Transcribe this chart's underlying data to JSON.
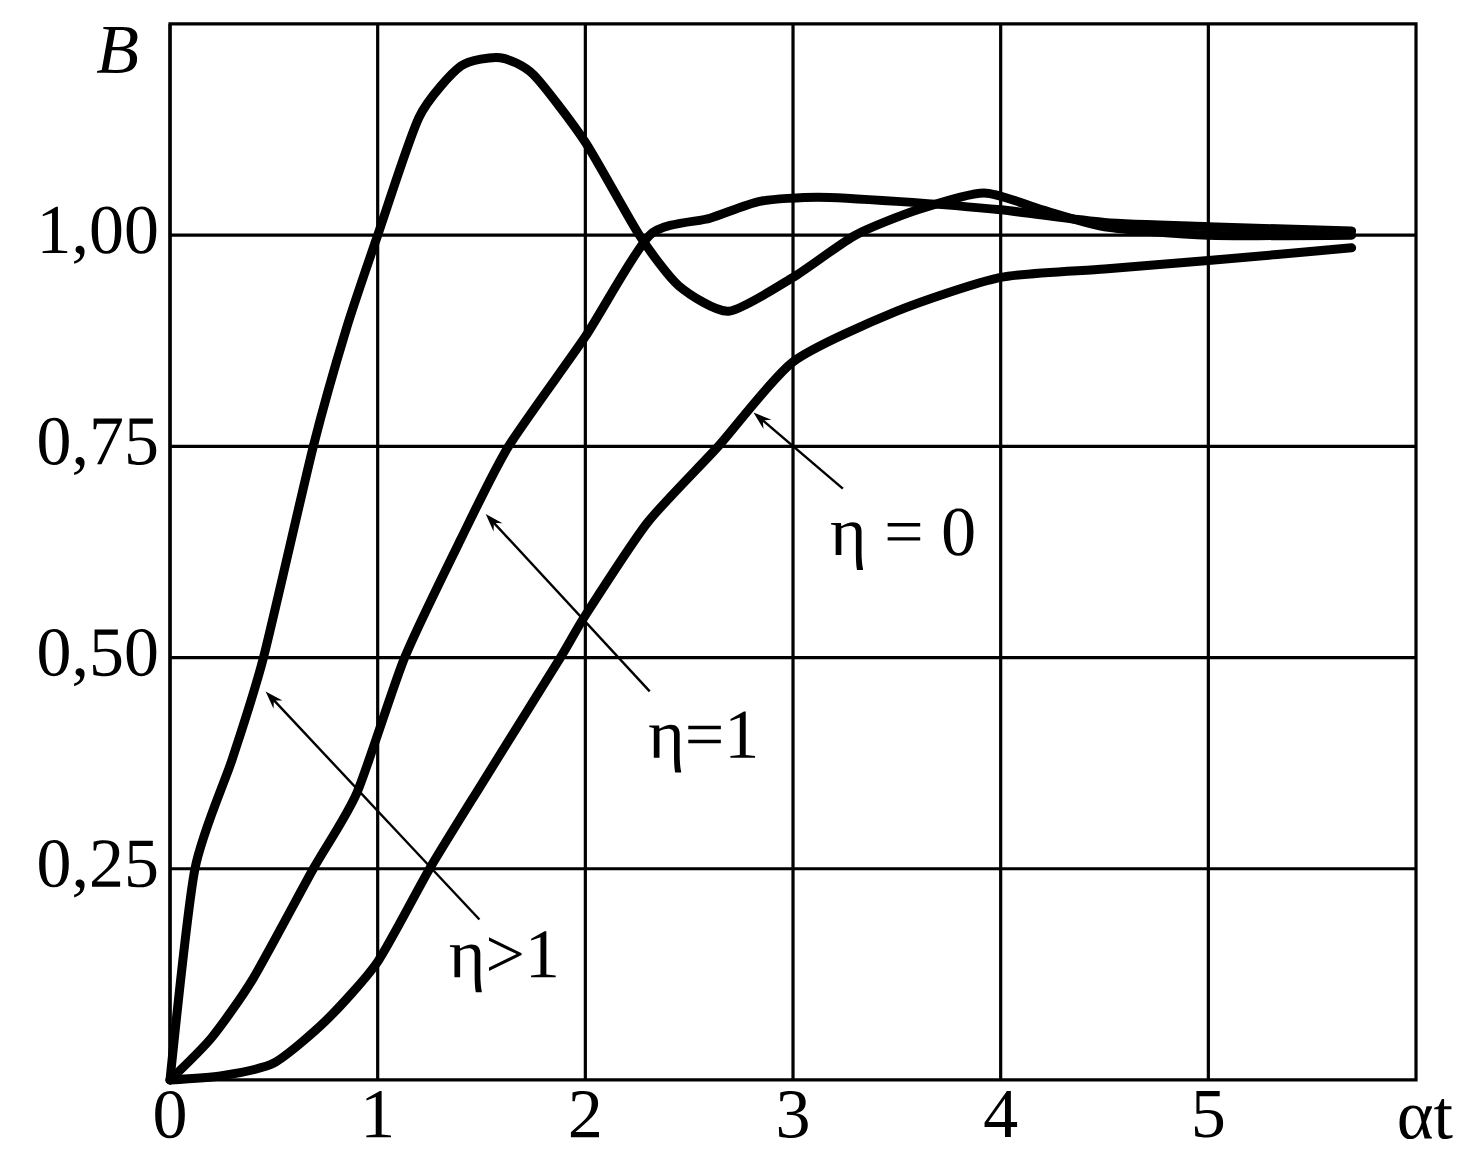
{
  "chart_data": {
    "type": "line",
    "xlabel": "αt",
    "ylabel": "B",
    "xlim": [
      0,
      6
    ],
    "ylim": [
      0,
      1.25
    ],
    "xticks": [
      0,
      1,
      2,
      3,
      4,
      5
    ],
    "yticks": [
      {
        "value": 0.25,
        "label": "0,25"
      },
      {
        "value": 0.5,
        "label": "0,50"
      },
      {
        "value": 0.75,
        "label": "0,75"
      },
      {
        "value": 1.0,
        "label": "1,00"
      }
    ],
    "grid": true,
    "marker": "none",
    "line_style": "solid",
    "series": [
      {
        "color": "#000000",
        "x": [
          0,
          0.12,
          0.3,
          0.45,
          0.69,
          0.85,
          1.0,
          1.2,
          1.4,
          1.59,
          1.75,
          2.0,
          2.26,
          2.45,
          2.69,
          3.0,
          3.3,
          3.6,
          3.92,
          4.2,
          4.5,
          5.0,
          5.69
        ],
        "values": [
          0,
          0.25,
          0.38,
          0.5,
          0.75,
          0.89,
          1.0,
          1.14,
          1.2,
          1.21,
          1.19,
          1.11,
          1.0,
          0.94,
          0.91,
          0.95,
          1.0,
          1.03,
          1.05,
          1.03,
          1.01,
          1.0,
          1.0
        ]
      },
      {
        "color": "#000000",
        "x": [
          0,
          0.2,
          0.4,
          0.69,
          0.9,
          1.13,
          1.4,
          1.63,
          2.0,
          2.31,
          2.6,
          2.84,
          3.12,
          3.5,
          4.0,
          4.5,
          5.0,
          5.69
        ],
        "values": [
          0,
          0.05,
          0.12,
          0.25,
          0.34,
          0.5,
          0.64,
          0.75,
          0.88,
          1.0,
          1.02,
          1.04,
          1.045,
          1.04,
          1.03,
          1.015,
          1.01,
          1.005
        ]
      },
      {
        "color": "#000000",
        "x": [
          0,
          0.25,
          0.5,
          0.75,
          1.0,
          1.25,
          1.5,
          1.88,
          2.0,
          2.3,
          2.64,
          3.0,
          3.5,
          4.0,
          4.5,
          5.0,
          5.69
        ],
        "values": [
          0,
          0.005,
          0.02,
          0.07,
          0.14,
          0.25,
          0.35,
          0.5,
          0.55,
          0.66,
          0.75,
          0.85,
          0.91,
          0.95,
          0.96,
          0.97,
          0.985
        ]
      }
    ],
    "annotations": [
      {
        "text": "η>1",
        "x": 0.46,
        "y": 0.46
      },
      {
        "text": "η=1",
        "x": 1.52,
        "y": 0.67
      },
      {
        "text": "η = 0",
        "x": 2.81,
        "y": 0.79
      }
    ]
  }
}
